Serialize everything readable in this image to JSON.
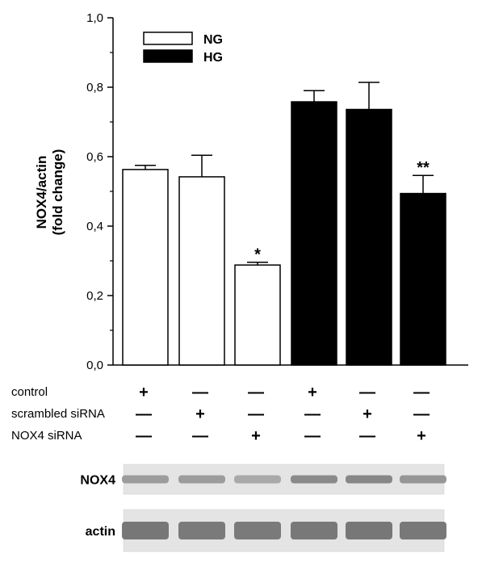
{
  "chart_data": {
    "type": "bar",
    "ylabel": [
      "NOX4/actin",
      "(fold change)"
    ],
    "ylim": [
      0.0,
      1.0
    ],
    "yticks": [
      "0,0",
      "0,2",
      "0,4",
      "0,6",
      "0,8",
      "1,0"
    ],
    "series": [
      {
        "name": "NG",
        "color": "#ffffff"
      },
      {
        "name": "HG",
        "color": "#000000"
      }
    ],
    "bars": [
      {
        "series": "NG",
        "value": 0.563,
        "error": 0.012,
        "annotation": ""
      },
      {
        "series": "NG",
        "value": 0.542,
        "error": 0.062,
        "annotation": ""
      },
      {
        "series": "NG",
        "value": 0.288,
        "error": 0.008,
        "annotation": "*"
      },
      {
        "series": "HG",
        "value": 0.758,
        "error": 0.032,
        "annotation": ""
      },
      {
        "series": "HG",
        "value": 0.736,
        "error": 0.078,
        "annotation": ""
      },
      {
        "series": "HG",
        "value": 0.494,
        "error": 0.052,
        "annotation": "**"
      }
    ],
    "conditions": [
      {
        "label": "control",
        "marks": [
          "+",
          "—",
          "—",
          "+",
          "—",
          "—"
        ]
      },
      {
        "label": "scrambled siRNA",
        "marks": [
          "—",
          "+",
          "—",
          "—",
          "+",
          "—"
        ]
      },
      {
        "label": "NOX4 siRNA",
        "marks": [
          "—",
          "—",
          "+",
          "—",
          "—",
          "+"
        ]
      }
    ]
  },
  "blots": [
    {
      "label": "NOX4",
      "band_intensity": [
        0.55,
        0.55,
        0.45,
        0.7,
        0.72,
        0.6
      ]
    },
    {
      "label": "actin",
      "band_intensity": [
        0.85,
        0.82,
        0.82,
        0.84,
        0.85,
        0.84
      ]
    }
  ]
}
